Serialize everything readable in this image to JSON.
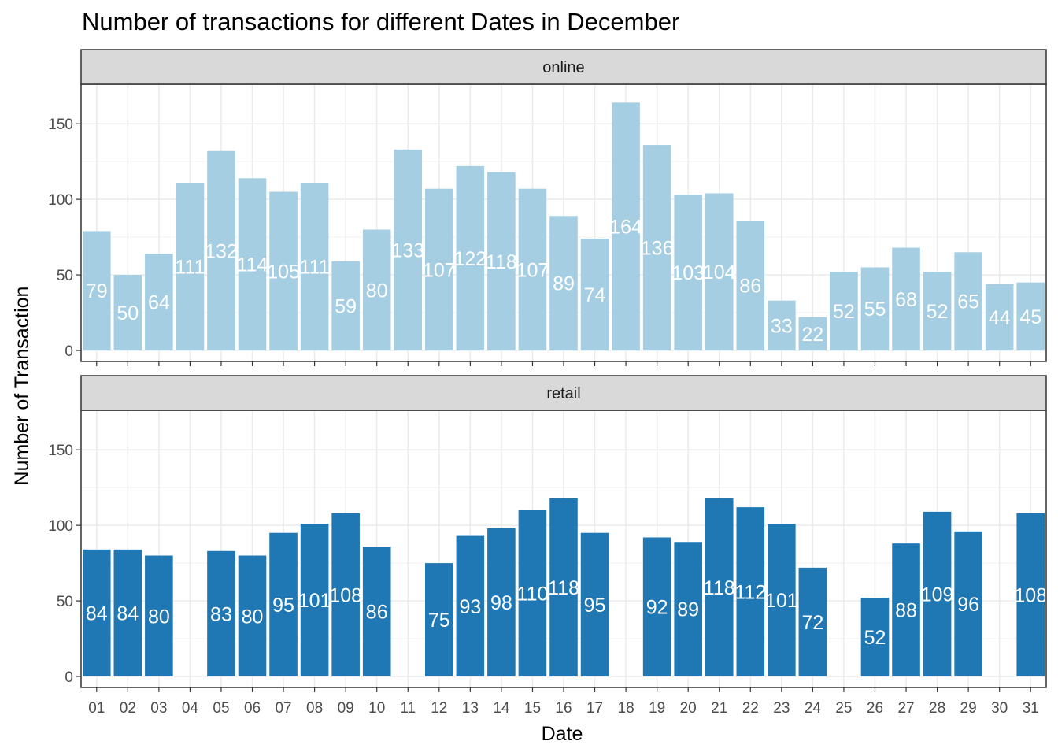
{
  "chart_data": {
    "type": "bar",
    "title": "Number of transactions for different Dates in December",
    "xlabel": "Date",
    "ylabel": "Number of Transaction",
    "ylim": [
      0,
      172
    ],
    "yticks": [
      0,
      50,
      100,
      150
    ],
    "grid": true,
    "categories": [
      "01",
      "02",
      "03",
      "04",
      "05",
      "06",
      "07",
      "08",
      "09",
      "10",
      "11",
      "12",
      "13",
      "14",
      "15",
      "16",
      "17",
      "18",
      "19",
      "20",
      "21",
      "22",
      "23",
      "24",
      "25",
      "26",
      "27",
      "28",
      "29",
      "30",
      "31"
    ],
    "panels": [
      {
        "name": "online",
        "color": "#a6cee3",
        "values": [
          79,
          50,
          64,
          111,
          132,
          114,
          105,
          111,
          59,
          80,
          133,
          107,
          122,
          118,
          107,
          89,
          74,
          164,
          136,
          103,
          104,
          86,
          33,
          22,
          52,
          55,
          68,
          52,
          65,
          44,
          45
        ]
      },
      {
        "name": "retail",
        "color": "#1f78b4",
        "values": [
          84,
          84,
          80,
          null,
          83,
          80,
          95,
          101,
          108,
          86,
          null,
          75,
          93,
          98,
          110,
          118,
          95,
          null,
          92,
          89,
          118,
          112,
          101,
          72,
          null,
          52,
          88,
          109,
          96,
          null,
          108
        ]
      }
    ]
  }
}
